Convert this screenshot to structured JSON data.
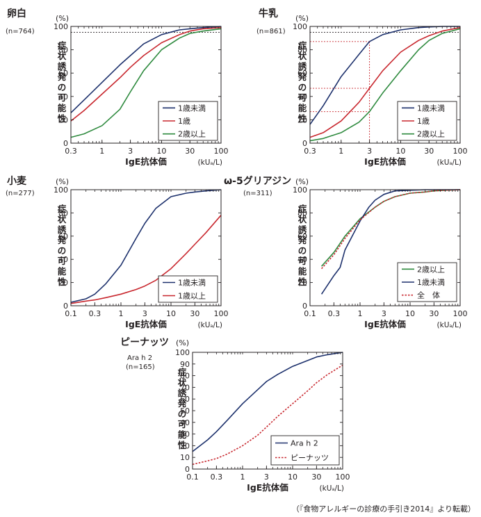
{
  "source_note": "（『食物アレルギーの診療の手引き2014』より転載）",
  "chart_data": [
    {
      "type": "line",
      "title": "卵白",
      "subtitle": "(n=764)",
      "xlabel": "IgE抗体価",
      "xunit": "(kUₐ/L)",
      "ylabel": "症状誘発の可能性",
      "yunit": "(%)",
      "xscale": "log",
      "xlim": [
        0.3,
        100
      ],
      "ylim": [
        0,
        100
      ],
      "xticks": [
        "0.3",
        "1",
        "3",
        "10",
        "30",
        "100"
      ],
      "yticks": [
        "0",
        "20",
        "40",
        "60",
        "80",
        "100"
      ],
      "legend_position": "bottom-right",
      "reference_lines": [
        {
          "kind": "horizontal",
          "y": 95
        }
      ],
      "series": [
        {
          "name": "1歳未満",
          "color": "#1b2f6b",
          "style": "solid",
          "x": [
            0.3,
            0.5,
            1,
            2,
            3,
            5,
            10,
            20,
            30,
            50,
            100
          ],
          "y": [
            26,
            37,
            52,
            67,
            75,
            85,
            93,
            97,
            98,
            99,
            100
          ]
        },
        {
          "name": "1歳",
          "color": "#c8262d",
          "style": "solid",
          "x": [
            0.3,
            0.5,
            1,
            2,
            3,
            5,
            10,
            20,
            30,
            50,
            100
          ],
          "y": [
            19,
            28,
            42,
            56,
            65,
            75,
            86,
            93,
            96,
            98,
            99
          ]
        },
        {
          "name": "2歳以上",
          "color": "#2e8a3e",
          "style": "solid",
          "x": [
            0.3,
            0.5,
            1,
            2,
            3,
            5,
            10,
            20,
            30,
            50,
            100
          ],
          "y": [
            5,
            8,
            15,
            29,
            44,
            62,
            80,
            90,
            94,
            96,
            98
          ]
        }
      ]
    },
    {
      "type": "line",
      "title": "牛乳",
      "subtitle": "(n=861)",
      "xlabel": "IgE抗体価",
      "xunit": "(kUₐ/L)",
      "ylabel": "症状誘発の可能性",
      "yunit": "(%)",
      "xscale": "log",
      "xlim": [
        0.3,
        100
      ],
      "ylim": [
        0,
        100
      ],
      "xticks": [
        "0.3",
        "1",
        "3",
        "10",
        "30",
        "100"
      ],
      "yticks": [
        "0",
        "20",
        "40",
        "60",
        "80",
        "100"
      ],
      "legend_position": "bottom-right",
      "reference_lines": [
        {
          "kind": "horizontal",
          "y": 95,
          "x_to": 100,
          "color": "#231f20"
        },
        {
          "kind": "horizontal",
          "y": 87,
          "x_to": 3,
          "color": "#c8262d"
        },
        {
          "kind": "horizontal",
          "y": 47,
          "x_to": 3,
          "color": "#c8262d"
        },
        {
          "kind": "horizontal",
          "y": 27,
          "x_to": 3,
          "color": "#c8262d"
        },
        {
          "kind": "vertical",
          "x": 3,
          "y_to": 87,
          "color": "#c8262d"
        }
      ],
      "series": [
        {
          "name": "1歳未満",
          "color": "#1b2f6b",
          "style": "solid",
          "x": [
            0.3,
            0.5,
            1,
            2,
            3,
            5,
            10,
            20,
            30,
            50,
            100
          ],
          "y": [
            16,
            32,
            57,
            76,
            87,
            93,
            97,
            99,
            99.5,
            100,
            100
          ]
        },
        {
          "name": "1歳",
          "color": "#c8262d",
          "style": "solid",
          "x": [
            0.3,
            0.5,
            1,
            2,
            3,
            5,
            10,
            20,
            30,
            50,
            100
          ],
          "y": [
            5,
            9,
            19,
            35,
            47,
            62,
            78,
            88,
            92,
            96,
            99
          ]
        },
        {
          "name": "2歳以上",
          "color": "#2e8a3e",
          "style": "solid",
          "x": [
            0.3,
            0.5,
            1,
            2,
            3,
            5,
            10,
            20,
            30,
            50,
            100
          ],
          "y": [
            2,
            4,
            9,
            18,
            27,
            43,
            62,
            80,
            88,
            94,
            98
          ]
        }
      ]
    },
    {
      "type": "line",
      "title": "小麦",
      "subtitle": "(n=277)",
      "xlabel": "IgE抗体価",
      "xunit": "(kUₐ/L)",
      "ylabel": "症状誘発の可能性",
      "yunit": "(%)",
      "xscale": "log",
      "xlim": [
        0.1,
        100
      ],
      "ylim": [
        0,
        100
      ],
      "xticks": [
        "0.1",
        "0.3",
        "1",
        "3",
        "10",
        "30",
        "100"
      ],
      "yticks": [
        "0",
        "20",
        "40",
        "60",
        "80",
        "100"
      ],
      "legend_position": "bottom-right",
      "series": [
        {
          "name": "1歳未満",
          "color": "#1b2f6b",
          "style": "solid",
          "x": [
            0.1,
            0.2,
            0.3,
            0.5,
            1,
            2,
            3,
            5,
            10,
            20,
            30,
            50,
            100
          ],
          "y": [
            3,
            6,
            10,
            19,
            35,
            58,
            71,
            84,
            94,
            97,
            98,
            99,
            100
          ]
        },
        {
          "name": "1歳以上",
          "color": "#c8262d",
          "style": "solid",
          "x": [
            0.1,
            0.2,
            0.3,
            0.5,
            1,
            2,
            3,
            5,
            10,
            20,
            30,
            50,
            100
          ],
          "y": [
            2,
            4,
            5,
            7,
            10,
            14,
            17,
            22,
            32,
            45,
            53,
            63,
            78
          ]
        }
      ]
    },
    {
      "type": "line",
      "title": "ω-5グリアジン",
      "subtitle": "(n=311)",
      "xlabel": "IgE抗体価",
      "xunit": "(kUₐ/L)",
      "ylabel": "症状誘発の可能性",
      "yunit": "(%)",
      "xscale": "log",
      "xlim": [
        0.1,
        100
      ],
      "ylim": [
        0,
        100
      ],
      "xticks": [
        "0.1",
        "0.3",
        "1",
        "3",
        "10",
        "30",
        "100"
      ],
      "yticks": [
        "0",
        "20",
        "40",
        "60",
        "80",
        "100"
      ],
      "legend_position": "bottom-right",
      "series": [
        {
          "name": "2歳以上",
          "color": "#2e8a3e",
          "style": "solid",
          "x": [
            0.17,
            0.3,
            0.5,
            1,
            2,
            3,
            5,
            10,
            20,
            30,
            50,
            100
          ],
          "y": [
            34,
            46,
            60,
            75,
            85,
            90,
            94,
            97,
            98,
            99,
            99.5,
            100
          ]
        },
        {
          "name": "1歳未満",
          "color": "#1b2f6b",
          "style": "solid",
          "x": [
            0.17,
            0.3,
            0.4,
            0.5,
            1,
            1.5,
            2,
            3,
            5,
            10,
            20,
            30,
            50,
            100
          ],
          "y": [
            10,
            26,
            33,
            48,
            73,
            85,
            91,
            96,
            99,
            99.5,
            100,
            100,
            100,
            100
          ]
        },
        {
          "name": "全　体",
          "color": "#c8262d",
          "style": "dotted",
          "x": [
            0.17,
            0.3,
            0.5,
            1,
            2,
            3,
            5,
            10,
            20,
            30,
            50,
            100
          ],
          "y": [
            32,
            44,
            58,
            74,
            85,
            90,
            94,
            97,
            98,
            99,
            99.5,
            100
          ]
        }
      ]
    },
    {
      "type": "line",
      "title": "ピーナッツ",
      "subtitle": "Ara h 2",
      "subtitle2": "(n=165)",
      "xlabel": "IgE抗体価",
      "xunit": "(kUₐ/L)",
      "ylabel": "症状誘発の可能性",
      "yunit": "(%)",
      "xscale": "log",
      "xlim": [
        0.1,
        100
      ],
      "ylim": [
        0,
        100
      ],
      "xticks": [
        "0.1",
        "0.3",
        "1",
        "3",
        "10",
        "30",
        "100"
      ],
      "yticks": [
        "0",
        "10",
        "20",
        "30",
        "40",
        "50",
        "60",
        "70",
        "80",
        "90",
        "100"
      ],
      "legend_position": "bottom-right",
      "series": [
        {
          "name": "Ara h 2",
          "color": "#1b2f6b",
          "style": "solid",
          "x": [
            0.1,
            0.2,
            0.3,
            0.5,
            1,
            2,
            3,
            5,
            10,
            20,
            30,
            50,
            100
          ],
          "y": [
            15,
            25,
            32,
            42,
            56,
            68,
            75,
            81,
            88,
            93,
            96,
            98,
            100
          ]
        },
        {
          "name": "ピーナッツ",
          "color": "#c8262d",
          "style": "dotted",
          "x": [
            0.1,
            0.2,
            0.3,
            0.5,
            1,
            2,
            3,
            5,
            10,
            20,
            30,
            50,
            100
          ],
          "y": [
            4,
            7,
            9,
            13,
            20,
            29,
            36,
            45,
            56,
            67,
            74,
            81,
            89
          ]
        }
      ]
    }
  ]
}
